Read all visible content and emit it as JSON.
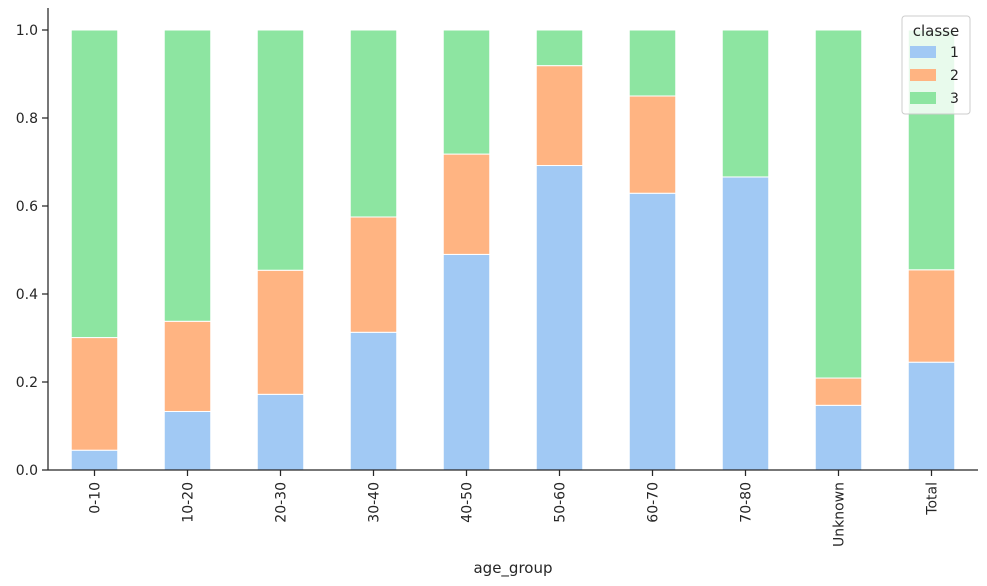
{
  "chart_data": {
    "type": "bar",
    "stacked": true,
    "categories": [
      "0-10",
      "10-20",
      "20-30",
      "30-40",
      "40-50",
      "50-60",
      "60-70",
      "70-80",
      "Unknown",
      "Total"
    ],
    "series": [
      {
        "name": "1",
        "color": "#a1c9f4",
        "values": [
          0.045,
          0.133,
          0.172,
          0.313,
          0.49,
          0.692,
          0.629,
          0.666,
          0.147,
          0.245
        ]
      },
      {
        "name": "2",
        "color": "#ffb482",
        "values": [
          0.256,
          0.205,
          0.282,
          0.262,
          0.228,
          0.227,
          0.221,
          0.0,
          0.062,
          0.21
        ]
      },
      {
        "name": "3",
        "color": "#8de5a1",
        "values": [
          0.699,
          0.662,
          0.546,
          0.425,
          0.282,
          0.081,
          0.15,
          0.334,
          0.791,
          0.545
        ]
      }
    ],
    "xlabel": "age_group",
    "ylabel": "",
    "ylim": [
      0,
      1.05
    ],
    "yticks": [
      0.0,
      0.2,
      0.4,
      0.6,
      0.8,
      1.0
    ],
    "ytick_labels": [
      "0.0",
      "0.2",
      "0.4",
      "0.6",
      "0.8",
      "1.0"
    ],
    "grid": false,
    "legend": {
      "title": "classe",
      "position": "top-right"
    }
  }
}
